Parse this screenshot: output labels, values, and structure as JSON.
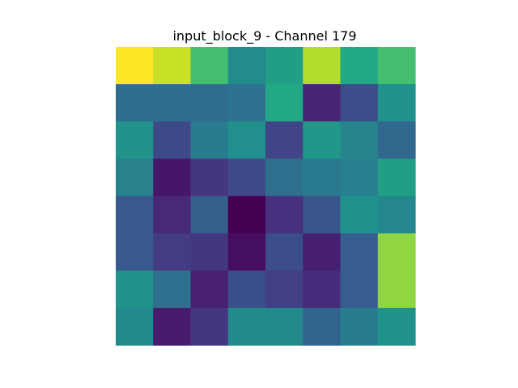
{
  "figure": {
    "title": "input_block_9 - Channel 179"
  },
  "chart_data": {
    "type": "heatmap",
    "title": "input_block_9 - Channel 179",
    "colormap": "viridis",
    "rows": 8,
    "cols": 8,
    "axes_visible": false,
    "colorbar": false,
    "vmin": 0,
    "vmax": 1,
    "values": [
      [
        1.0,
        0.95,
        0.82,
        0.6,
        0.7,
        0.93,
        0.75,
        0.82
      ],
      [
        0.45,
        0.45,
        0.44,
        0.47,
        0.75,
        0.13,
        0.3,
        0.63
      ],
      [
        0.64,
        0.28,
        0.52,
        0.62,
        0.25,
        0.66,
        0.56,
        0.43
      ],
      [
        0.55,
        0.08,
        0.2,
        0.28,
        0.46,
        0.51,
        0.54,
        0.7
      ],
      [
        0.35,
        0.15,
        0.38,
        0.0,
        0.18,
        0.33,
        0.63,
        0.58
      ],
      [
        0.35,
        0.22,
        0.2,
        0.05,
        0.3,
        0.11,
        0.37,
        0.9
      ],
      [
        0.64,
        0.46,
        0.12,
        0.31,
        0.23,
        0.16,
        0.37,
        0.9
      ],
      [
        0.59,
        0.1,
        0.2,
        0.59,
        0.59,
        0.41,
        0.52,
        0.63
      ]
    ]
  }
}
